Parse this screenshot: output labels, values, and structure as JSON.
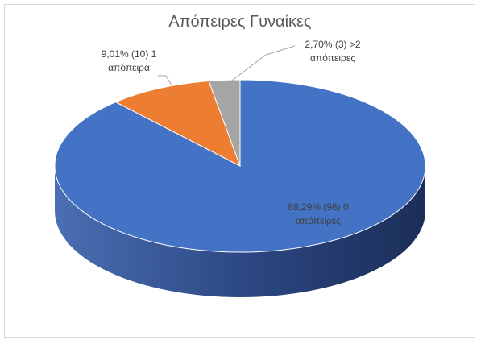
{
  "chart_data": {
    "type": "pie",
    "title": "Απόπειρες Γυναίκες",
    "slices": [
      {
        "label": "0 απόπειρες",
        "count": 98,
        "percent": 88.29,
        "color": "#4472c4",
        "data_label_lines": [
          "88,29% (98) 0",
          "απόπειρες"
        ]
      },
      {
        "label": "1 απόπειρα",
        "count": 10,
        "percent": 9.01,
        "color": "#ed7d31",
        "data_label_lines": [
          "9,01% (10) 1",
          "απόπειρα"
        ]
      },
      {
        "label": ">2 απόπειρες",
        "count": 3,
        "percent": 2.7,
        "color": "#a5a5a5",
        "data_label_lines": [
          "2,70% (3) >2",
          "απόπειρες"
        ]
      }
    ],
    "style": "3d-pie",
    "legend": "none"
  }
}
